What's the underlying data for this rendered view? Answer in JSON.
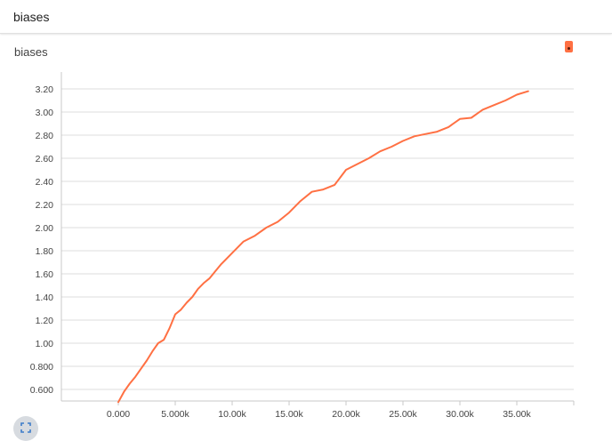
{
  "section": {
    "title": "biases"
  },
  "card": {
    "title": "biases"
  },
  "colors": {
    "series": "#ff7043",
    "grid": "#dedede",
    "axis": "#c8c8c8"
  },
  "icons": {
    "legend": "legend-toggle-icon",
    "expand": "fullscreen-icon"
  },
  "chart_data": {
    "type": "line",
    "title": "biases",
    "xlabel": "",
    "ylabel": "",
    "xlim": [
      -5000,
      40000
    ],
    "ylim": [
      0.5,
      3.3
    ],
    "grid": true,
    "x_ticks": [
      0,
      5000,
      10000,
      15000,
      20000,
      25000,
      30000,
      35000
    ],
    "x_tick_labels": [
      "0.000",
      "5.000k",
      "10.00k",
      "15.00k",
      "20.00k",
      "25.00k",
      "30.00k",
      "35.00k"
    ],
    "y_ticks": [
      0.6,
      0.8,
      1.0,
      1.2,
      1.4,
      1.6,
      1.8,
      2.0,
      2.2,
      2.4,
      2.6,
      2.8,
      3.0,
      3.2
    ],
    "y_tick_labels": [
      "0.600",
      "0.800",
      "1.00",
      "1.20",
      "1.40",
      "1.60",
      "1.80",
      "2.00",
      "2.20",
      "2.40",
      "2.60",
      "2.80",
      "3.00",
      "3.20"
    ],
    "series": [
      {
        "x": [
          0,
          500,
          1000,
          1500,
          2000,
          2500,
          3000,
          3500,
          4000,
          4500,
          5000,
          5500,
          6000,
          6500,
          7000,
          7500,
          8000,
          8500,
          9000,
          9500,
          10000,
          11000,
          12000,
          13000,
          14000,
          15000,
          16000,
          17000,
          18000,
          19000,
          20000,
          21000,
          22000,
          23000,
          24000,
          25000,
          26000,
          27000,
          28000,
          29000,
          30000,
          31000,
          32000,
          33000,
          34000,
          35000,
          36000
        ],
        "y": [
          0.49,
          0.58,
          0.65,
          0.71,
          0.78,
          0.85,
          0.93,
          1.0,
          1.03,
          1.13,
          1.25,
          1.29,
          1.35,
          1.4,
          1.47,
          1.52,
          1.56,
          1.62,
          1.68,
          1.73,
          1.78,
          1.88,
          1.93,
          2.0,
          2.05,
          2.13,
          2.23,
          2.31,
          2.33,
          2.37,
          2.5,
          2.55,
          2.6,
          2.66,
          2.7,
          2.75,
          2.79,
          2.81,
          2.83,
          2.87,
          2.94,
          2.95,
          3.02,
          3.06,
          3.1,
          3.15,
          3.18
        ]
      }
    ]
  }
}
